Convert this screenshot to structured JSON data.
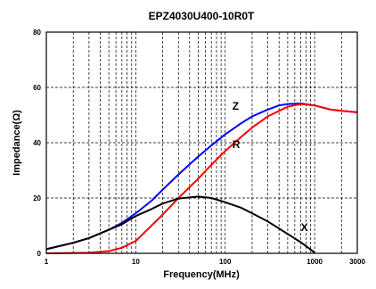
{
  "chart_data": {
    "type": "line",
    "title": "EPZ4030U400-10R0T",
    "xlabel": "Frequency(MHz)",
    "ylabel": "Impedance(Ω)",
    "x_scale": "log",
    "xlim": [
      1,
      3000
    ],
    "ylim": [
      0,
      80
    ],
    "x_ticks": [
      {
        "value": 1,
        "label": "1"
      },
      {
        "value": 10,
        "label": "10"
      },
      {
        "value": 100,
        "label": "100"
      },
      {
        "value": 1000,
        "label": "1000"
      },
      {
        "value": 3000,
        "label": "3000"
      }
    ],
    "y_ticks": [
      {
        "value": 0,
        "label": "0"
      },
      {
        "value": 20,
        "label": "20"
      },
      {
        "value": 40,
        "label": "40"
      },
      {
        "value": 60,
        "label": "60"
      },
      {
        "value": 80,
        "label": "80"
      }
    ],
    "grid": true,
    "series": [
      {
        "name": "Z",
        "color": "#0000ff",
        "label_at": [
          120,
          52
        ],
        "x": [
          1,
          2,
          3,
          5,
          7,
          10,
          15,
          20,
          30,
          50,
          70,
          100,
          150,
          200,
          300,
          400,
          500,
          700,
          1000,
          1500,
          2000,
          3000
        ],
        "y": [
          1.5,
          3.8,
          5.5,
          8.5,
          11,
          14.5,
          19,
          23,
          28.5,
          35,
          39,
          43,
          47,
          49.5,
          52,
          53.5,
          54,
          54.2,
          53.5,
          52,
          51.5,
          51
        ]
      },
      {
        "name": "R",
        "color": "#ff0000",
        "label_at": [
          120,
          38
        ],
        "x": [
          1,
          3,
          5,
          7,
          10,
          15,
          20,
          30,
          50,
          70,
          100,
          150,
          200,
          300,
          400,
          500,
          700,
          1000,
          1500,
          2000,
          3000
        ],
        "y": [
          0,
          0.2,
          0.8,
          2,
          4.5,
          10,
          14,
          20,
          27,
          32,
          37,
          42,
          45.5,
          49.5,
          51.5,
          53,
          54,
          53.5,
          52,
          51.5,
          51
        ]
      },
      {
        "name": "X",
        "color": "#000000",
        "label_at": [
          700,
          8
        ],
        "x": [
          1,
          2,
          3,
          5,
          7,
          10,
          15,
          20,
          30,
          50,
          70,
          100,
          150,
          200,
          300,
          500,
          700,
          1000
        ],
        "y": [
          1.5,
          3.8,
          5.5,
          8.5,
          10.5,
          13.5,
          16,
          18,
          19.8,
          20.5,
          20,
          18.5,
          16.5,
          14.5,
          11.5,
          7,
          4,
          0.3
        ]
      }
    ]
  }
}
